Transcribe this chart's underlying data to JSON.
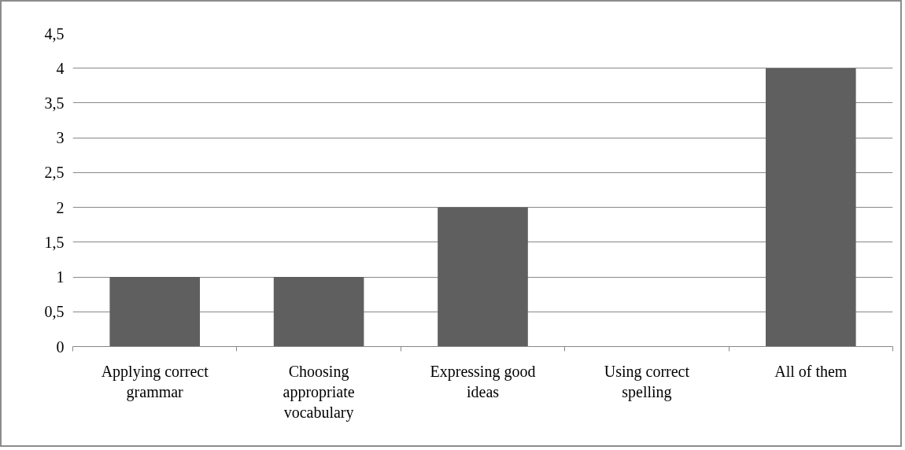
{
  "chart_data": {
    "type": "bar",
    "categories": [
      "Applying correct grammar",
      "Choosing appropriate vocabulary",
      "Expressing good ideas",
      "Using correct spelling",
      "All of them"
    ],
    "values": [
      1,
      1,
      2,
      0,
      4
    ],
    "color": "#5f5f5f",
    "ylim": [
      0,
      4.5
    ],
    "yticks": [
      0,
      {
        "value": 0.5,
        "label": "0,5"
      },
      1,
      {
        "value": 1.5,
        "label": "1,5"
      },
      2,
      {
        "value": 2.5,
        "label": "2,5"
      },
      3,
      {
        "value": 3.5,
        "label": "3,5"
      },
      4,
      {
        "value": 4.5,
        "label": "4,5"
      }
    ],
    "grid": "y"
  }
}
